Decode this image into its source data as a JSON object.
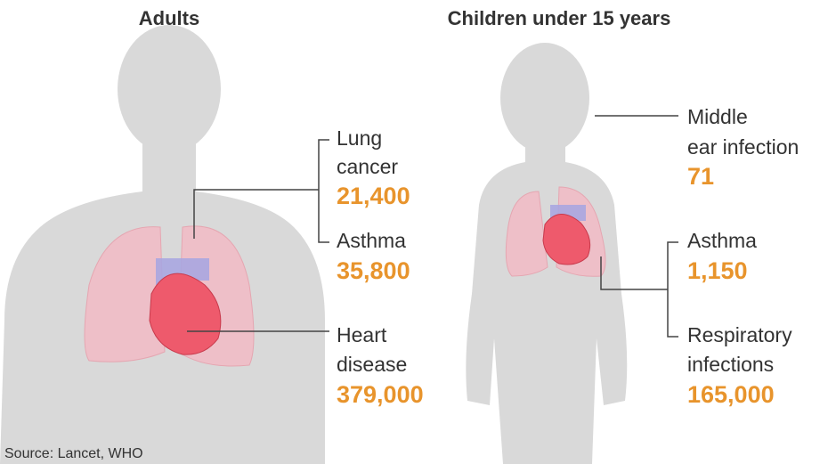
{
  "panels": [
    {
      "title": "Adults",
      "conditions": [
        {
          "label_lines": [
            "Lung",
            "cancer"
          ],
          "value": "21,400"
        },
        {
          "label_lines": [
            "Asthma"
          ],
          "value": "35,800"
        },
        {
          "label_lines": [
            "Heart",
            "disease"
          ],
          "value": "379,000"
        }
      ]
    },
    {
      "title": "Children under 15 years",
      "conditions": [
        {
          "label_lines": [
            "Middle",
            "ear infection"
          ],
          "value": "71"
        },
        {
          "label_lines": [
            "Asthma"
          ],
          "value": "1,150"
        },
        {
          "label_lines": [
            "Respiratory",
            "infections"
          ],
          "value": "165,000"
        }
      ]
    }
  ],
  "source": "Source: Lancet, WHO"
}
